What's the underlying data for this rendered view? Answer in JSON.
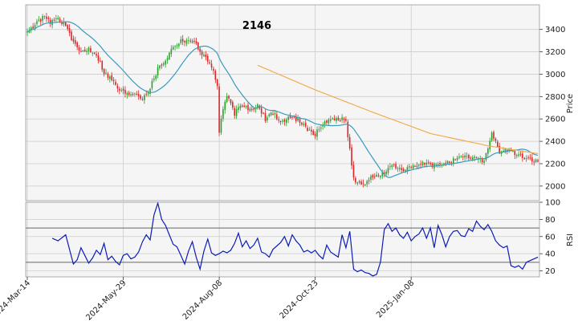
{
  "chart_data": [
    {
      "type": "candlestick",
      "panel": "price",
      "title": "2146",
      "ylabel": "Price",
      "ylim": [
        1870,
        3620
      ],
      "y_ticks": [
        2000,
        2200,
        2400,
        2600,
        2800,
        3000,
        3200,
        3400
      ],
      "x_ticks": [
        "2024-Mar-14",
        "2024-May-29",
        "2024-Aug-08",
        "2024-Oct-23",
        "2025-Jan-08"
      ],
      "x_tick_index": [
        0,
        50,
        100,
        150,
        200
      ],
      "grid": true,
      "colors": {
        "up": "#2ca02c",
        "down": "#d62728",
        "short_ma": "#3a9bbd",
        "long_ma": "#f0ad4e",
        "grid": "#cccccc",
        "panel_bg": "#f5f5f5"
      },
      "closes_keyframes": {
        "index": [
          0,
          4,
          8,
          12,
          16,
          20,
          24,
          28,
          32,
          36,
          40,
          44,
          48,
          52,
          56,
          60,
          64,
          68,
          72,
          76,
          80,
          84,
          88,
          92,
          96,
          99,
          100,
          102,
          104,
          108,
          112,
          116,
          120,
          124,
          128,
          132,
          136,
          140,
          144,
          148,
          150,
          154,
          158,
          162,
          166,
          170,
          174,
          178,
          182,
          186,
          190,
          194,
          198,
          202,
          206,
          210,
          214,
          218,
          222,
          226,
          230,
          234,
          238,
          242,
          246,
          250,
          254,
          258,
          262,
          266
        ],
        "close": [
          3370,
          3440,
          3510,
          3470,
          3500,
          3440,
          3270,
          3200,
          3230,
          3180,
          3020,
          2950,
          2860,
          2820,
          2840,
          2790,
          2880,
          3050,
          3130,
          3250,
          3300,
          3310,
          3270,
          3160,
          3080,
          2900,
          2470,
          2700,
          2800,
          2650,
          2720,
          2680,
          2710,
          2600,
          2660,
          2570,
          2610,
          2600,
          2560,
          2470,
          2460,
          2560,
          2590,
          2610,
          2580,
          2070,
          2000,
          2060,
          2090,
          2120,
          2180,
          2160,
          2150,
          2170,
          2200,
          2190,
          2180,
          2220,
          2230,
          2250,
          2260,
          2250,
          2230,
          2470,
          2310,
          2330,
          2290,
          2260,
          2240,
          2220
        ]
      },
      "ma_short_label": "",
      "ma_long": {
        "index": [
          120,
          150,
          180,
          210,
          240,
          266
        ],
        "value": [
          3080,
          2860,
          2660,
          2470,
          2360,
          2290
        ]
      }
    },
    {
      "type": "line",
      "panel": "rsi",
      "ylabel": "RSI",
      "ylim": [
        13,
        100
      ],
      "y_ticks": [
        20,
        40,
        60,
        80,
        100
      ],
      "bands": [
        30,
        70
      ],
      "line_color": "#0b1cb8",
      "rsi_keyframes": {
        "index": [
          13,
          16,
          20,
          24,
          26,
          28,
          30,
          32,
          34,
          36,
          38,
          40,
          42,
          44,
          46,
          48,
          50,
          52,
          54,
          56,
          58,
          60,
          62,
          64,
          66,
          68,
          70,
          72,
          74,
          76,
          78,
          80,
          82,
          84,
          86,
          88,
          90,
          92,
          94,
          96,
          98,
          100,
          102,
          104,
          106,
          108,
          110,
          112,
          114,
          116,
          118,
          120,
          122,
          124,
          126,
          128,
          130,
          132,
          134,
          136,
          138,
          140,
          142,
          144,
          146,
          148,
          150,
          152,
          154,
          156,
          158,
          160,
          162,
          164,
          166,
          168,
          170,
          172,
          174,
          176,
          178,
          180,
          182,
          184,
          186,
          188,
          190,
          192,
          194,
          196,
          198,
          200,
          202,
          204,
          206,
          208,
          210,
          212,
          214,
          216,
          218,
          220,
          222,
          224,
          226,
          228,
          230,
          232,
          234,
          236,
          238,
          240,
          242,
          244,
          246,
          248,
          250,
          252,
          254,
          256,
          258,
          260,
          262,
          264,
          266
        ],
        "rsi": [
          58,
          55,
          62,
          28,
          33,
          47,
          38,
          29,
          35,
          44,
          39,
          52,
          33,
          37,
          31,
          27,
          38,
          40,
          34,
          36,
          42,
          54,
          62,
          56,
          85,
          99,
          80,
          73,
          62,
          51,
          48,
          38,
          28,
          43,
          54,
          36,
          22,
          43,
          57,
          41,
          38,
          40,
          43,
          41,
          44,
          52,
          64,
          48,
          55,
          46,
          50,
          58,
          42,
          40,
          36,
          45,
          49,
          53,
          60,
          49,
          62,
          55,
          50,
          42,
          44,
          41,
          44,
          38,
          34,
          50,
          42,
          39,
          36,
          62,
          47,
          66,
          22,
          19,
          21,
          18,
          17,
          14,
          16,
          30,
          68,
          75,
          66,
          70,
          62,
          58,
          65,
          55,
          60,
          63,
          70,
          58,
          70,
          47,
          73,
          62,
          48,
          60,
          66,
          67,
          61,
          60,
          69,
          66,
          78,
          72,
          68,
          74,
          66,
          55,
          50,
          47,
          49,
          26,
          24,
          26,
          22,
          30,
          32,
          34,
          36
        ]
      }
    }
  ]
}
